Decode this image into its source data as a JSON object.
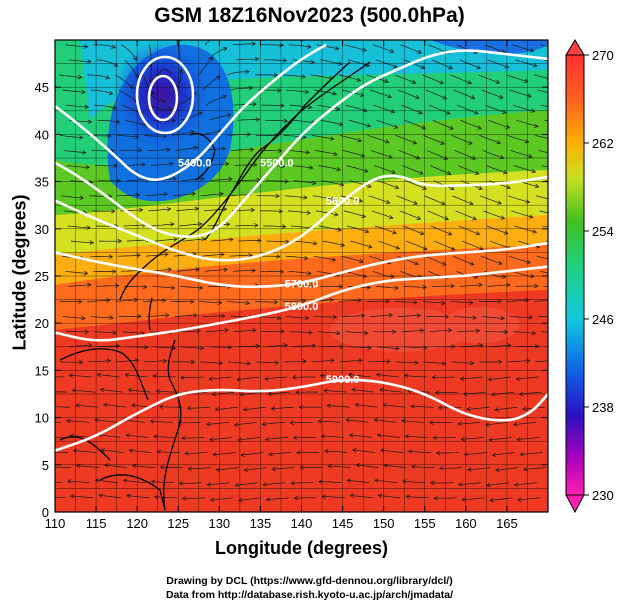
{
  "title": "GSM 18Z16Nov2023 (500.0hPa)",
  "x_axis": {
    "label": "Longitude (degrees)",
    "ticks": [
      "110",
      "115",
      "120",
      "125",
      "130",
      "135",
      "140",
      "145",
      "150",
      "155",
      "160",
      "165"
    ]
  },
  "y_axis": {
    "label": "Latitude  (degrees)",
    "ticks": [
      "0",
      "5",
      "10",
      "15",
      "20",
      "25",
      "30",
      "35",
      "40",
      "45"
    ]
  },
  "colorbar": {
    "ticks": [
      "230",
      "238",
      "246",
      "254",
      "262",
      "270"
    ],
    "min": 230,
    "max": 270
  },
  "contour_labels": [
    "5400.0",
    "5500.0",
    "5600.0",
    "5700.0",
    "5800.0",
    "5900.0"
  ],
  "credits": {
    "line1": "Drawing by DCL (https://www.gfd-dennou.org/library/dcl/)",
    "line2": "Data from http://database.rish.kyoto-u.ac.jp/arch/jmadata/"
  },
  "chart_data": {
    "type": "heatmap",
    "title": "GSM 18Z16Nov2023 (500.0hPa)",
    "xlabel": "Longitude (degrees)",
    "ylabel": "Latitude  (degrees)",
    "xlim": [
      110,
      170
    ],
    "ylim": [
      0,
      50
    ],
    "color_range": [
      230,
      270
    ],
    "contours": [
      {
        "label": "5400.0",
        "lat_by_lon": [
          [
            110,
            43
          ],
          [
            113,
            41
          ],
          [
            117,
            38
          ],
          [
            120,
            35.5
          ],
          [
            123,
            35
          ],
          [
            127,
            37
          ],
          [
            130,
            40
          ],
          [
            133,
            43
          ],
          [
            137,
            46
          ],
          [
            140,
            48
          ],
          [
            143,
            49.5
          ]
        ]
      },
      {
        "label": "5500.0",
        "lat_by_lon": [
          [
            110,
            37
          ],
          [
            113,
            35.5
          ],
          [
            117,
            33
          ],
          [
            120,
            31
          ],
          [
            123,
            29.5
          ],
          [
            127,
            29
          ],
          [
            130,
            30
          ],
          [
            133,
            33
          ],
          [
            137,
            37
          ],
          [
            140,
            40
          ],
          [
            144,
            43
          ],
          [
            148,
            45.5
          ],
          [
            152,
            47
          ],
          [
            156,
            48.5
          ],
          [
            160,
            49
          ],
          [
            165,
            48.5
          ],
          [
            170,
            48
          ]
        ]
      },
      {
        "label": "5600.0",
        "lat_by_lon": [
          [
            110,
            33
          ],
          [
            115,
            31
          ],
          [
            120,
            29.3
          ],
          [
            125,
            27.5
          ],
          [
            130,
            26.5
          ],
          [
            135,
            27
          ],
          [
            140,
            29
          ],
          [
            145,
            33
          ],
          [
            149,
            35.5
          ],
          [
            152,
            35.7
          ],
          [
            155,
            34.5
          ],
          [
            160,
            34.6
          ],
          [
            165,
            34.8
          ],
          [
            170,
            35.5
          ]
        ]
      },
      {
        "label": "5700.0",
        "lat_by_lon": [
          [
            110,
            27.5
          ],
          [
            115,
            26.5
          ],
          [
            120,
            25.7
          ],
          [
            125,
            25
          ],
          [
            130,
            24
          ],
          [
            135,
            23.8
          ],
          [
            140,
            24.2
          ],
          [
            145,
            25.4
          ],
          [
            150,
            26.5
          ],
          [
            155,
            27.2
          ],
          [
            160,
            27.5
          ],
          [
            165,
            27.8
          ],
          [
            170,
            28.5
          ]
        ]
      },
      {
        "label": "5800.0",
        "lat_by_lon": [
          [
            110,
            19
          ],
          [
            115,
            18
          ],
          [
            120,
            18.6
          ],
          [
            125,
            19.2
          ],
          [
            130,
            20
          ],
          [
            135,
            20.8
          ],
          [
            140,
            21.8
          ],
          [
            145,
            23.5
          ],
          [
            150,
            24.5
          ],
          [
            155,
            24.8
          ],
          [
            160,
            25
          ],
          [
            165,
            25.5
          ],
          [
            170,
            26
          ]
        ]
      },
      {
        "label": "5900.0",
        "lat_by_lon": [
          [
            110,
            6.5
          ],
          [
            115,
            8
          ],
          [
            120,
            10.5
          ],
          [
            125,
            12.6
          ],
          [
            130,
            13
          ],
          [
            135,
            12.7
          ],
          [
            140,
            13.2
          ],
          [
            145,
            14.1
          ],
          [
            150,
            13.8
          ],
          [
            155,
            12.6
          ],
          [
            160,
            10.2
          ],
          [
            165,
            9.5
          ],
          [
            168,
            10.5
          ],
          [
            170,
            12.5
          ]
        ]
      }
    ],
    "closed_low": {
      "lon": 123.5,
      "lat": 45.5
    },
    "wind_field": "streamlines"
  }
}
